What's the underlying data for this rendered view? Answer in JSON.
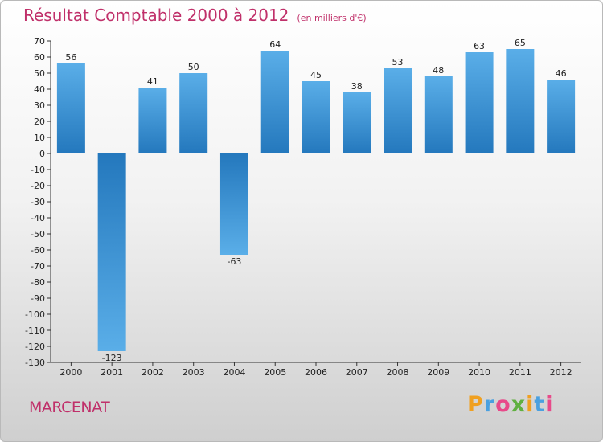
{
  "chart_data": {
    "type": "bar",
    "title": "Résultat Comptable 2000 à 2012",
    "subtitle": "(en milliers d'€)",
    "categories": [
      "2000",
      "2001",
      "2002",
      "2003",
      "2004",
      "2005",
      "2006",
      "2007",
      "2008",
      "2009",
      "2010",
      "2011",
      "2012"
    ],
    "values": [
      56,
      -123,
      41,
      50,
      -63,
      64,
      45,
      38,
      53,
      48,
      63,
      65,
      46
    ],
    "ylim": [
      -130,
      70
    ],
    "yticks": [
      70,
      60,
      50,
      40,
      30,
      20,
      10,
      0,
      -10,
      -20,
      -30,
      -40,
      -50,
      -60,
      -70,
      -80,
      -90,
      -100,
      -110,
      -120,
      -130
    ],
    "grid": false,
    "bar_color": "#3a8fd6"
  },
  "footer": {
    "town": "MARCENAT",
    "logo_letters": [
      "P",
      "r",
      "o",
      "x",
      "i",
      "t",
      "i"
    ],
    "logo_colors": [
      "#f0a020",
      "#4aa0e0",
      "#e84a8a",
      "#60b040",
      "#f0a020",
      "#4aa0e0",
      "#e84a8a"
    ]
  }
}
